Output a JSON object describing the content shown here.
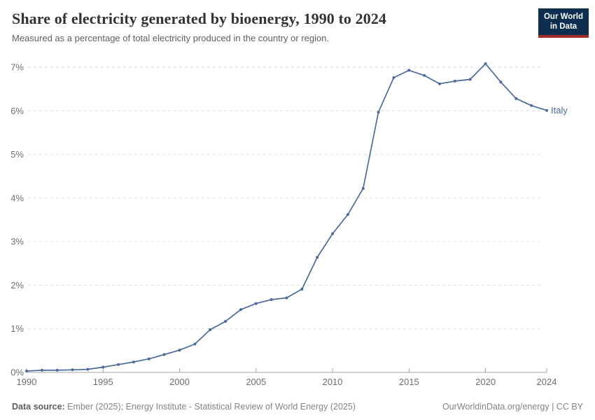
{
  "header": {
    "title": "Share of electricity generated by bioenergy, 1990 to 2024",
    "subtitle": "Measured as a percentage of total electricity produced in the country or region."
  },
  "logo": {
    "line1": "Our World",
    "line2": "in Data",
    "bg_color": "#0d2e4e",
    "stripe_color": "#a22c2c"
  },
  "chart_data": {
    "type": "line",
    "title": "Share of electricity generated by bioenergy, 1990 to 2024",
    "xlabel": "",
    "ylabel": "",
    "xlim": [
      1990,
      2024
    ],
    "ylim": [
      0,
      7
    ],
    "grid": "horizontal-dashed",
    "yticks": [
      0,
      1,
      2,
      3,
      4,
      5,
      6,
      7
    ],
    "ytick_suffix": "%",
    "xticks": [
      1990,
      1995,
      2000,
      2005,
      2010,
      2015,
      2020,
      2024
    ],
    "series": [
      {
        "name": "Italy",
        "color": "#4c6a9c",
        "x": [
          1990,
          1991,
          1992,
          1993,
          1994,
          1995,
          1996,
          1997,
          1998,
          1999,
          2000,
          2001,
          2002,
          2003,
          2004,
          2005,
          2006,
          2007,
          2008,
          2009,
          2010,
          2011,
          2012,
          2013,
          2014,
          2015,
          2016,
          2017,
          2018,
          2019,
          2020,
          2021,
          2022,
          2023,
          2024
        ],
        "values": [
          0.03,
          0.05,
          0.05,
          0.06,
          0.07,
          0.12,
          0.18,
          0.24,
          0.31,
          0.41,
          0.51,
          0.65,
          0.98,
          1.17,
          1.44,
          1.58,
          1.67,
          1.71,
          1.91,
          2.64,
          3.18,
          3.62,
          4.22,
          5.97,
          6.76,
          6.93,
          6.81,
          6.62,
          6.68,
          6.72,
          7.08,
          6.66,
          6.28,
          6.12,
          6.01
        ]
      }
    ],
    "end_label": "Italy",
    "colors": {
      "gridline": "#dcdcdc",
      "axis": "#a3a3a3",
      "tick_label": "#6e6e6e"
    },
    "legend_position": "end-of-line"
  },
  "footer": {
    "datasource_label": "Data source:",
    "datasource_text": " Ember (2025); Energy Institute - Statistical Review of World Energy (2025)",
    "right_text": "OurWorldinData.org/energy | CC BY"
  }
}
